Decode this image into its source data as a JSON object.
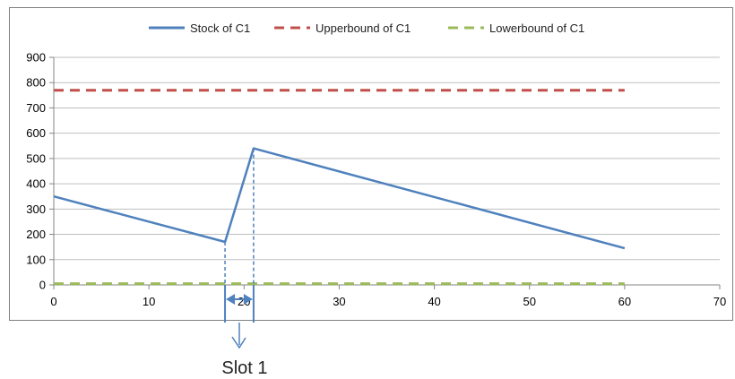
{
  "chart_data": {
    "type": "line",
    "title": "",
    "xlabel": "",
    "ylabel": "",
    "xlim": [
      0,
      70
    ],
    "ylim": [
      0,
      900
    ],
    "x_ticks": [
      0,
      10,
      20,
      30,
      40,
      50,
      60,
      70
    ],
    "y_ticks": [
      0,
      100,
      200,
      300,
      400,
      500,
      600,
      700,
      800,
      900
    ],
    "grid": "horizontal",
    "legend": "top",
    "series": [
      {
        "name": "Stock of C1",
        "style": "solid",
        "color": "#4f81bd",
        "points": [
          [
            0,
            350
          ],
          [
            18,
            170
          ],
          [
            21,
            540
          ],
          [
            60,
            145
          ]
        ]
      },
      {
        "name": "Upperbound of C1",
        "style": "dashed",
        "color": "#c0504d",
        "points": [
          [
            0,
            770
          ],
          [
            60,
            770
          ]
        ]
      },
      {
        "name": "Lowerbound of C1",
        "style": "dashed",
        "color": "#9bbb59",
        "points": [
          [
            0,
            5
          ],
          [
            60,
            5
          ]
        ]
      }
    ],
    "annotation": {
      "label": "Slot 1",
      "x_start": 18,
      "x_end": 21,
      "color": "#4f81bd"
    }
  }
}
